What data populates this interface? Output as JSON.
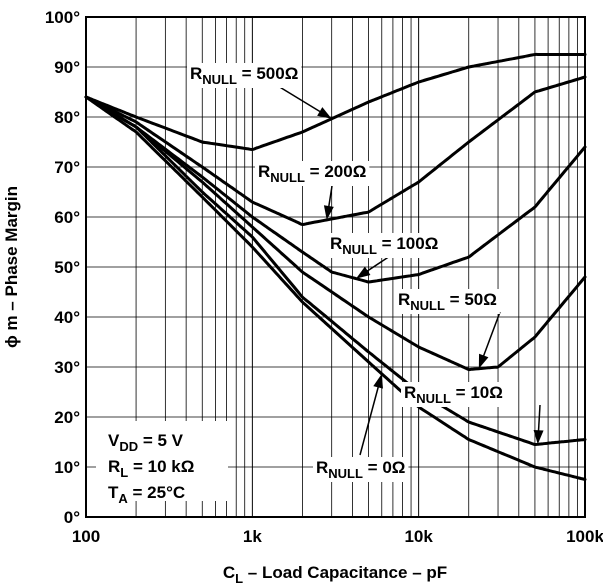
{
  "chart_data": {
    "type": "line",
    "xscale": "log",
    "xlim": [
      100,
      100000
    ],
    "ylim": [
      0,
      100
    ],
    "grid": true,
    "x_ticks": [
      {
        "value": 100,
        "label": "100"
      },
      {
        "value": 1000,
        "label": "1k"
      },
      {
        "value": 10000,
        "label": "10k"
      },
      {
        "value": 100000,
        "label": "100k"
      }
    ],
    "y_ticks": [
      {
        "value": 0,
        "label": "0°"
      },
      {
        "value": 10,
        "label": "10°"
      },
      {
        "value": 20,
        "label": "20°"
      },
      {
        "value": 30,
        "label": "30°"
      },
      {
        "value": 40,
        "label": "40°"
      },
      {
        "value": 50,
        "label": "50°"
      },
      {
        "value": 60,
        "label": "60°"
      },
      {
        "value": 70,
        "label": "70°"
      },
      {
        "value": 80,
        "label": "80°"
      },
      {
        "value": 90,
        "label": "90°"
      },
      {
        "value": 100,
        "label": "100°"
      }
    ],
    "xlabel": {
      "main": "C",
      "sub": "L",
      "rest": " – Load Capacitance – pF"
    },
    "ylabel": "ϕ m – Phase Margin",
    "conditions": [
      {
        "main": "V",
        "sub": "DD",
        "rest": " = 5 V"
      },
      {
        "main": "R",
        "sub": "L",
        "rest": " = 10 kΩ"
      },
      {
        "main": "T",
        "sub": "A",
        "rest": " = 25°C"
      }
    ],
    "series": [
      {
        "name": "RNULL = 500Ω",
        "label_main": "R",
        "label_sub": "NULL",
        "label_rest": " = 500Ω",
        "x": [
          100,
          200,
          500,
          1000,
          2000,
          5000,
          10000,
          20000,
          50000,
          100000
        ],
        "y": [
          84,
          80,
          75,
          73.5,
          77,
          83,
          87,
          90,
          92.5,
          92.5
        ]
      },
      {
        "name": "RNULL = 200Ω",
        "label_main": "R",
        "label_sub": "NULL",
        "label_rest": " = 200Ω",
        "x": [
          100,
          200,
          500,
          1000,
          2000,
          5000,
          10000,
          20000,
          50000,
          100000
        ],
        "y": [
          84,
          79,
          70,
          63,
          58.5,
          61,
          67,
          75,
          85,
          88
        ]
      },
      {
        "name": "RNULL = 100Ω",
        "label_main": "R",
        "label_sub": "NULL",
        "label_rest": " = 100Ω",
        "x": [
          100,
          200,
          500,
          1000,
          2000,
          3000,
          5000,
          10000,
          20000,
          50000,
          100000
        ],
        "y": [
          84,
          78,
          68,
          60,
          53,
          49,
          47,
          48.5,
          52,
          62,
          74
        ]
      },
      {
        "name": "RNULL = 50Ω",
        "label_main": "R",
        "label_sub": "NULL",
        "label_rest": " = 50Ω",
        "x": [
          100,
          200,
          500,
          1000,
          2000,
          5000,
          10000,
          20000,
          30000,
          50000,
          100000
        ],
        "y": [
          84,
          78,
          67,
          58,
          49,
          40,
          34,
          29.5,
          30,
          36,
          48
        ]
      },
      {
        "name": "RNULL = 10Ω",
        "label_main": "R",
        "label_sub": "NULL",
        "label_rest": " = 10Ω",
        "x": [
          100,
          200,
          500,
          1000,
          2000,
          5000,
          10000,
          20000,
          50000,
          100000
        ],
        "y": [
          84,
          78,
          65,
          56,
          44,
          33,
          25,
          19,
          14.5,
          15.5
        ]
      },
      {
        "name": "RNULL = 0Ω",
        "label_main": "R",
        "label_sub": "NULL",
        "label_rest": " = 0Ω",
        "x": [
          100,
          200,
          500,
          1000,
          2000,
          5000,
          10000,
          20000,
          50000,
          100000
        ],
        "y": [
          84,
          77,
          64,
          54,
          43,
          31,
          22,
          15.5,
          10,
          7.5
        ]
      }
    ]
  }
}
